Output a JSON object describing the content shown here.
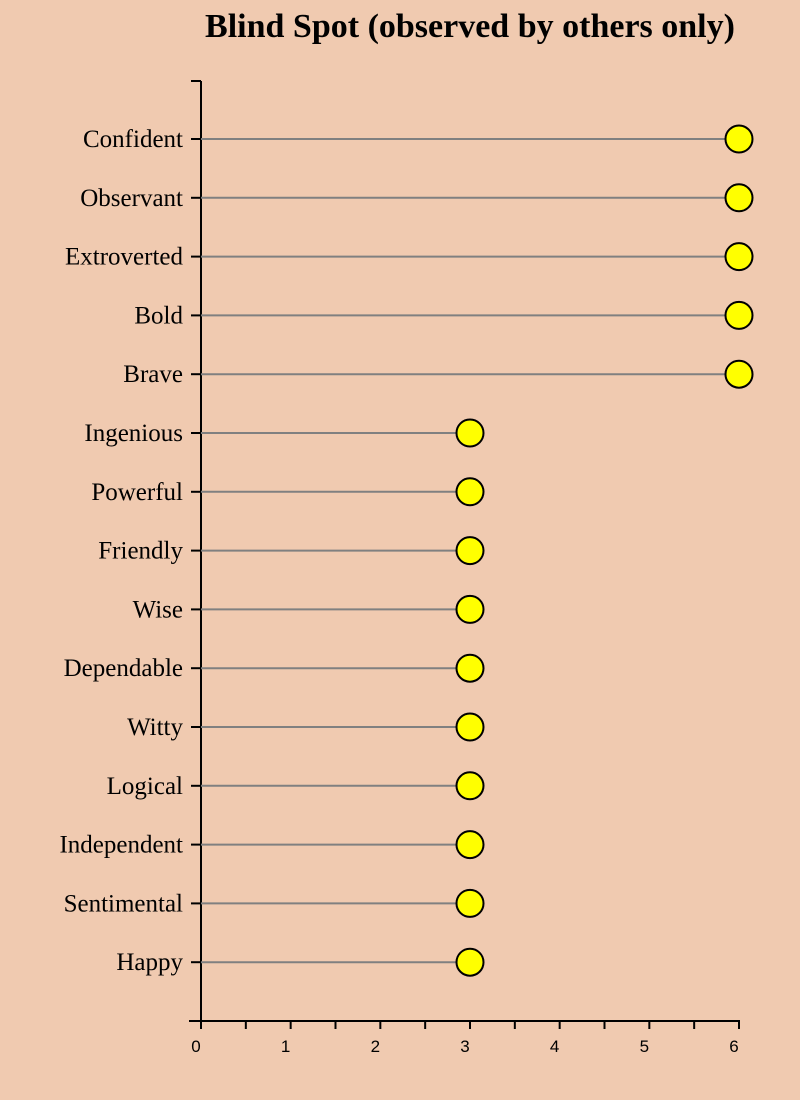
{
  "chart_data": {
    "type": "lollipop",
    "title": "Blind Spot (observed by others only)",
    "xlabel": "",
    "ylabel": "",
    "categories": [
      "Confident",
      "Observant",
      "Extroverted",
      "Bold",
      "Brave",
      "Ingenious",
      "Powerful",
      "Friendly",
      "Wise",
      "Dependable",
      "Witty",
      "Logical",
      "Independent",
      "Sentimental",
      "Happy"
    ],
    "values": [
      6,
      6,
      6,
      6,
      6,
      3,
      3,
      3,
      3,
      3,
      3,
      3,
      3,
      3,
      3
    ],
    "xlim": [
      0,
      6
    ],
    "x_ticks": [
      "0",
      "1",
      "2",
      "3",
      "4",
      "5",
      "6"
    ],
    "grid": false,
    "legend": "none"
  },
  "colors": {
    "background": "#f0cab0",
    "stem": "#808080",
    "marker_fill": "#ffff00",
    "marker_stroke": "#000000",
    "axis": "#000000"
  }
}
